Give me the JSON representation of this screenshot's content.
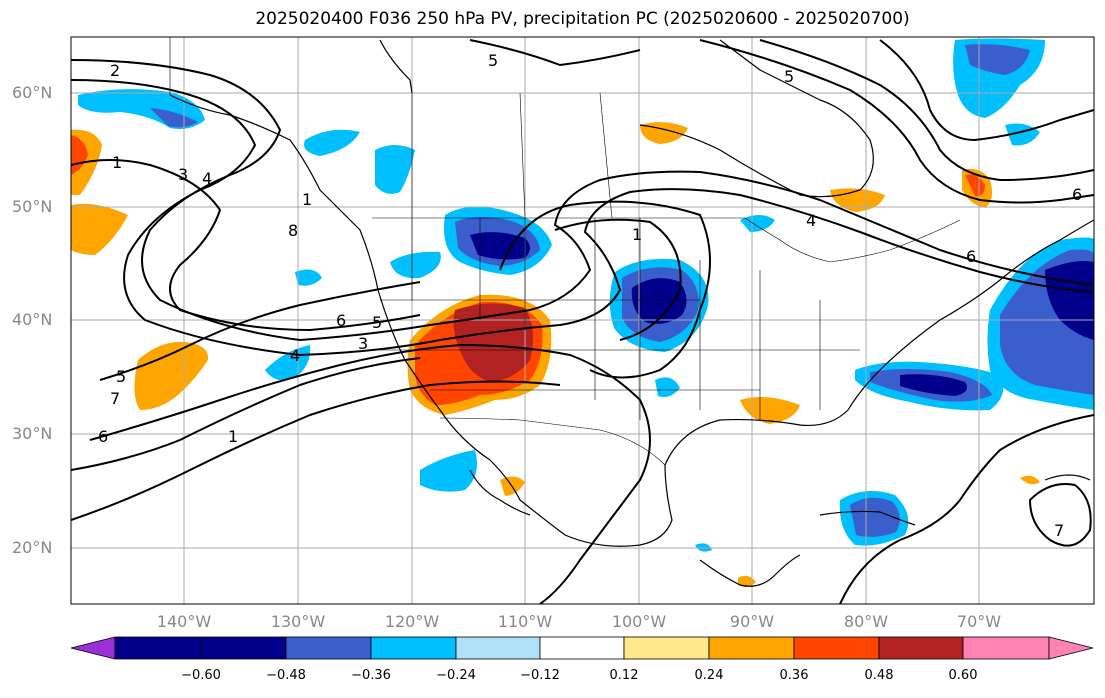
{
  "title": "2025020400 F036 250 hPa PV, precipitation PC (2025020600 - 2025020700)",
  "lat_labels": [
    "60°N",
    "50°N",
    "40°N",
    "30°N",
    "20°N"
  ],
  "lon_labels": [
    "140°W",
    "130°W",
    "120°W",
    "110°W",
    "100°W",
    "90°W",
    "80°W",
    "70°W"
  ],
  "colorbar": {
    "colors": [
      "#9b30d9",
      "#00008b",
      "#3a5fcd",
      "#00bfff",
      "#b0e0f8",
      "#ffffff",
      "#ffe98a",
      "#ffa500",
      "#ff4500",
      "#b22222",
      "#ff82b4"
    ],
    "labels": [
      "−0.60",
      "−0.48",
      "−0.36",
      "−0.24",
      "−0.12",
      "0.12",
      "0.24",
      "0.36",
      "0.48",
      "0.60"
    ]
  },
  "contour_labels": [
    "2",
    "5",
    "5",
    "1",
    "3",
    "4",
    "1",
    "8",
    "1",
    "4",
    "6",
    "6",
    "5",
    "3",
    "5",
    "4",
    "7",
    "6",
    "1",
    "7",
    "6"
  ]
}
